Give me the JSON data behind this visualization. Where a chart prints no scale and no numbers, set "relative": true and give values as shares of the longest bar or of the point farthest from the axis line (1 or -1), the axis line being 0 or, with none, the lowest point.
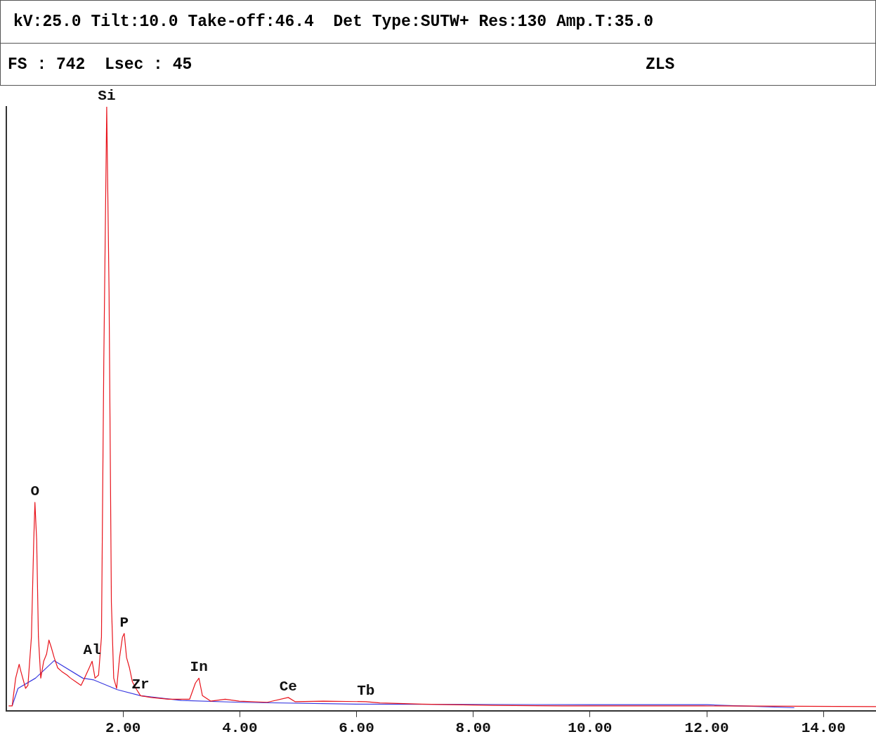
{
  "chart_data": {
    "type": "line",
    "title": "kV:25.0 Tilt:10.0 Take-off:46.4  Det Type:SUTW+ Res:130 Amp.T:35.0",
    "subtitle": "FS : 742  Lsec : 45",
    "relative": true,
    "marker": "none",
    "grid": false,
    "legend": false,
    "xlim": [
      0,
      14.9
    ],
    "xticks": [
      {
        "value": 2,
        "label": "2.00"
      },
      {
        "value": 4,
        "label": "4.00"
      },
      {
        "value": 6,
        "label": "6.00"
      },
      {
        "value": 8,
        "label": "8.00"
      },
      {
        "value": 10,
        "label": "10.00"
      },
      {
        "value": 12,
        "label": "12.00"
      },
      {
        "value": 14,
        "label": "14.00"
      }
    ],
    "annotations": [
      "ZLS",
      {
        "text": "O",
        "x": 0.49,
        "y": 0.345
      },
      {
        "text": "Si",
        "x": 1.72,
        "y": 1
      },
      {
        "text": "Al",
        "x": 1.47,
        "y": 0.082
      },
      {
        "text": "P",
        "x": 2.02,
        "y": 0.128
      },
      {
        "text": "Zr",
        "x": 2.3,
        "y": 0.025
      },
      {
        "text": "In",
        "x": 3.3,
        "y": 0.054
      },
      {
        "text": "Ce",
        "x": 4.83,
        "y": 0.022
      },
      {
        "text": "Tb",
        "x": 6.16,
        "y": 0.015
      }
    ],
    "series": [
      {
        "color": "#e8141c",
        "x": [
          0.04,
          0.1,
          0.16,
          0.22,
          0.25,
          0.33,
          0.37,
          0.43,
          0.47,
          0.49,
          0.52,
          0.55,
          0.59,
          0.64,
          0.69,
          0.73,
          0.77,
          0.82,
          0.88,
          0.95,
          1.04,
          1.1,
          1.19,
          1.28,
          1.34,
          1.42,
          1.47,
          1.52,
          1.58,
          1.63,
          1.67,
          1.72,
          1.76,
          1.8,
          1.84,
          1.89,
          1.94,
          1.99,
          2.02,
          2.06,
          2.11,
          2.16,
          2.22,
          2.3,
          2.48,
          2.78,
          3.14,
          3.24,
          3.3,
          3.36,
          3.5,
          3.75,
          3.99,
          4.47,
          4.83,
          4.95,
          5.43,
          6.16,
          6.4,
          7.12,
          8.33,
          9.53,
          11.94,
          14.9
        ],
        "values": [
          0.008,
          0.008,
          0.054,
          0.077,
          0.065,
          0.037,
          0.042,
          0.122,
          0.282,
          0.345,
          0.282,
          0.122,
          0.054,
          0.082,
          0.094,
          0.117,
          0.105,
          0.088,
          0.071,
          0.065,
          0.059,
          0.054,
          0.048,
          0.042,
          0.054,
          0.071,
          0.082,
          0.054,
          0.059,
          0.122,
          0.579,
          1,
          0.694,
          0.179,
          0.054,
          0.037,
          0.088,
          0.122,
          0.128,
          0.088,
          0.071,
          0.048,
          0.037,
          0.025,
          0.022,
          0.019,
          0.019,
          0.046,
          0.054,
          0.025,
          0.016,
          0.019,
          0.016,
          0.014,
          0.022,
          0.015,
          0.016,
          0.015,
          0.013,
          0.011,
          0.009,
          0.008,
          0.008,
          0.007
        ]
      },
      {
        "color": "#3a3ae0",
        "x": [
          0.1,
          0.2,
          0.5,
          0.82,
          1.31,
          1.5,
          1.9,
          2.3,
          3.0,
          4.0,
          6.0,
          10,
          12,
          13.5
        ],
        "values": [
          0.008,
          0.037,
          0.054,
          0.083,
          0.054,
          0.051,
          0.035,
          0.025,
          0.017,
          0.014,
          0.011,
          0.01,
          0.01,
          0.005
        ]
      }
    ]
  }
}
